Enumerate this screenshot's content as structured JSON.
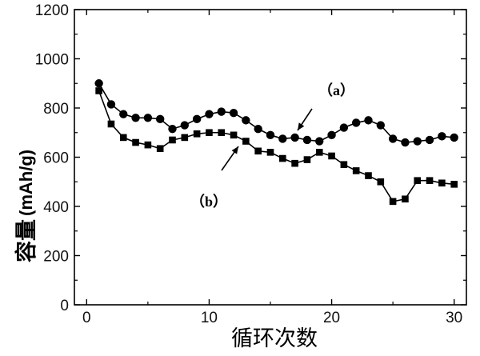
{
  "chart_data": {
    "type": "line",
    "x": [
      1,
      2,
      3,
      4,
      5,
      6,
      7,
      8,
      9,
      10,
      11,
      12,
      13,
      14,
      15,
      16,
      17,
      18,
      19,
      20,
      21,
      22,
      23,
      24,
      25,
      26,
      27,
      28,
      29,
      30
    ],
    "series": [
      {
        "name": "(a)",
        "marker": "circle",
        "color": "#000000",
        "values": [
          900,
          815,
          775,
          760,
          760,
          755,
          715,
          730,
          755,
          775,
          785,
          780,
          750,
          715,
          690,
          675,
          680,
          670,
          665,
          690,
          720,
          740,
          750,
          730,
          675,
          660,
          665,
          670,
          685,
          680
        ]
      },
      {
        "name": "(b)",
        "marker": "square",
        "color": "#000000",
        "values": [
          870,
          735,
          680,
          660,
          650,
          635,
          670,
          680,
          695,
          700,
          700,
          690,
          665,
          625,
          620,
          595,
          575,
          590,
          620,
          605,
          570,
          545,
          525,
          500,
          420,
          430,
          505,
          505,
          495,
          490
        ]
      }
    ],
    "xlabel": "循环次数",
    "ylabel": "容量",
    "ylabel_unit": "(mAh/g)",
    "xlim": [
      -1,
      31
    ],
    "ylim": [
      0,
      1200
    ],
    "xticks": [
      0,
      10,
      20,
      30
    ],
    "yticks": [
      0,
      200,
      400,
      600,
      800,
      1000,
      1200
    ],
    "grid": false,
    "annotations": [
      {
        "text": "（a）",
        "series": "(a)"
      },
      {
        "text": "（b）",
        "series": "(b)"
      }
    ]
  }
}
